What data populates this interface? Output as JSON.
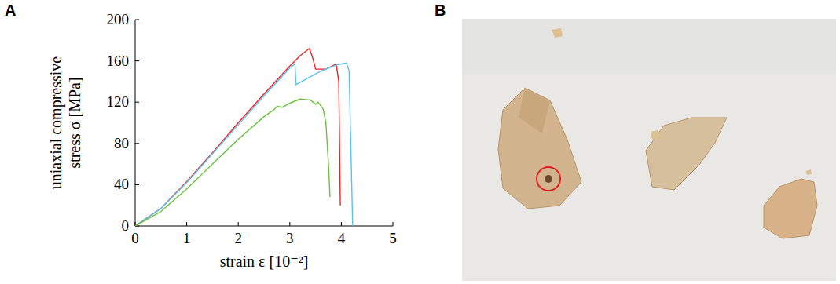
{
  "panel_labels": [
    "A",
    "B"
  ],
  "chart_data": {
    "type": "line",
    "ylabel": [
      "uniaxial compressive",
      "stress σ [MPa]"
    ],
    "xlabel": "strain ε [10⁻²]",
    "xlim": [
      0,
      5
    ],
    "xticks": [
      0,
      1,
      2,
      3,
      4,
      5
    ],
    "ylim": [
      0,
      200
    ],
    "yticks": [
      0,
      40,
      80,
      120,
      160,
      200
    ],
    "grid": false,
    "series": [
      {
        "color": "#ee2222",
        "x": [
          0,
          0.5,
          1,
          1.5,
          2,
          2.5,
          3,
          3.2,
          3.38,
          3.45,
          3.5,
          3.7,
          3.9,
          3.95,
          3.98
        ],
        "values": [
          0,
          17,
          43,
          71,
          100,
          128,
          155,
          165,
          172,
          162,
          152,
          152,
          157,
          140,
          20
        ]
      },
      {
        "color": "#55c4f5",
        "x": [
          0,
          0.5,
          1,
          1.5,
          2,
          2.5,
          3,
          3.1,
          3.12,
          3.3,
          3.6,
          3.9,
          4.1,
          4.15,
          4.22
        ],
        "values": [
          0,
          17,
          42,
          70,
          98,
          126,
          153,
          157,
          137,
          142,
          150,
          156,
          158,
          150,
          0
        ]
      },
      {
        "color": "#66c43a",
        "x": [
          0,
          0.5,
          1,
          1.5,
          2,
          2.5,
          2.7,
          2.75,
          2.85,
          3,
          3.2,
          3.4,
          3.5,
          3.55,
          3.65,
          3.7,
          3.75,
          3.78
        ],
        "values": [
          0,
          14,
          36,
          60,
          84,
          106,
          113,
          116,
          115,
          119,
          123,
          122,
          118,
          120,
          113,
          100,
          60,
          28
        ]
      }
    ]
  }
}
